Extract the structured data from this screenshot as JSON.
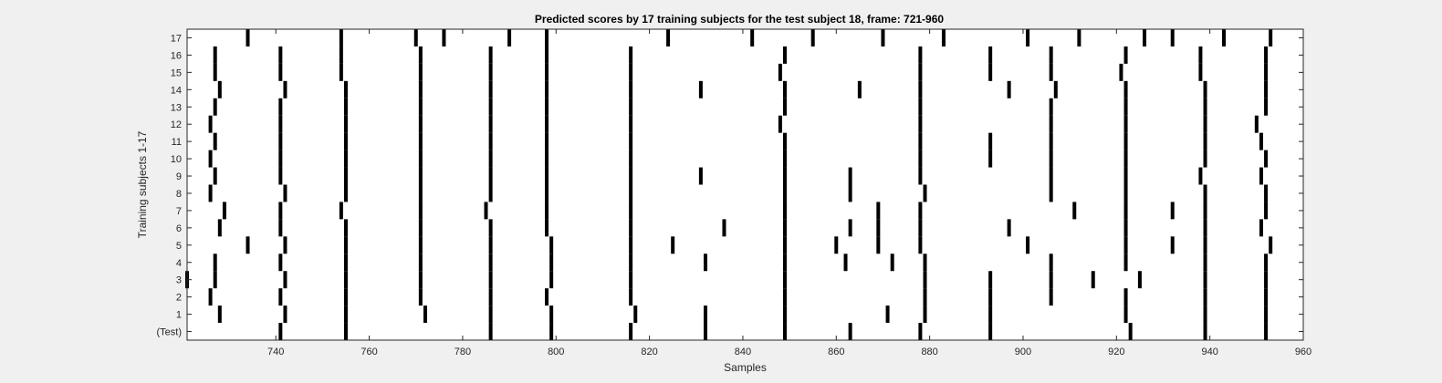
{
  "chart_data": {
    "type": "heatmap",
    "title": "Predicted scores by 17 training subjects for the test subject 18, frame: 721-960",
    "xlabel": "Samples",
    "ylabel": "Training subjects 1-17",
    "xlim": [
      721,
      960
    ],
    "xticks": [
      740,
      760,
      780,
      800,
      820,
      840,
      860,
      880,
      900,
      920,
      940,
      960
    ],
    "yticklabels": [
      "(Test)",
      "1",
      "2",
      "3",
      "4",
      "5",
      "6",
      "7",
      "8",
      "9",
      "10",
      "11",
      "12",
      "13",
      "14",
      "15",
      "16",
      "17"
    ],
    "grid": false,
    "colors": {
      "event": "#000000",
      "background": "#ffffff",
      "figure": "#f0f0f0"
    },
    "series": [
      {
        "row": "(Test)",
        "events": [
          741,
          755,
          786,
          799,
          816,
          832,
          849,
          863,
          878,
          893,
          923,
          939,
          952
        ]
      },
      {
        "row": "1",
        "events": [
          728,
          742,
          755,
          772,
          786,
          799,
          817,
          832,
          849,
          871,
          879,
          893,
          922,
          939,
          952
        ]
      },
      {
        "row": "2",
        "events": [
          726,
          741,
          755,
          771,
          786,
          798,
          816,
          849,
          879,
          893,
          906,
          922,
          939,
          952
        ]
      },
      {
        "row": "3",
        "events": [
          721,
          727,
          742,
          755,
          771,
          786,
          799,
          816,
          849,
          879,
          893,
          906,
          915,
          925,
          939,
          952
        ]
      },
      {
        "row": "4",
        "events": [
          727,
          741,
          755,
          771,
          786,
          799,
          816,
          832,
          849,
          862,
          872,
          879,
          906,
          922,
          939,
          952
        ]
      },
      {
        "row": "5",
        "events": [
          734,
          742,
          755,
          771,
          786,
          799,
          816,
          825,
          849,
          860,
          869,
          878,
          901,
          922,
          932,
          939,
          953
        ]
      },
      {
        "row": "6",
        "events": [
          728,
          741,
          755,
          771,
          786,
          798,
          816,
          836,
          849,
          863,
          869,
          878,
          897,
          922,
          939,
          951
        ]
      },
      {
        "row": "7",
        "events": [
          729,
          741,
          754,
          771,
          785,
          798,
          816,
          849,
          869,
          878,
          911,
          922,
          932,
          939,
          952
        ]
      },
      {
        "row": "8",
        "events": [
          726,
          742,
          755,
          771,
          786,
          798,
          816,
          849,
          863,
          879,
          906,
          922,
          939,
          952
        ]
      },
      {
        "row": "9",
        "events": [
          727,
          741,
          755,
          771,
          786,
          798,
          816,
          831,
          849,
          863,
          878,
          906,
          922,
          938,
          951
        ]
      },
      {
        "row": "10",
        "events": [
          726,
          741,
          755,
          771,
          786,
          798,
          816,
          849,
          878,
          893,
          906,
          922,
          939,
          952
        ]
      },
      {
        "row": "11",
        "events": [
          727,
          741,
          755,
          771,
          786,
          798,
          816,
          849,
          878,
          893,
          906,
          922,
          939,
          951
        ]
      },
      {
        "row": "12",
        "events": [
          726,
          741,
          755,
          771,
          786,
          798,
          816,
          848,
          878,
          906,
          922,
          939,
          950
        ]
      },
      {
        "row": "13",
        "events": [
          727,
          741,
          755,
          771,
          786,
          798,
          816,
          849,
          878,
          906,
          922,
          939,
          952
        ]
      },
      {
        "row": "14",
        "events": [
          728,
          742,
          755,
          771,
          786,
          798,
          816,
          831,
          849,
          865,
          878,
          897,
          907,
          922,
          939,
          952
        ]
      },
      {
        "row": "15",
        "events": [
          727,
          741,
          754,
          771,
          786,
          798,
          816,
          848,
          878,
          893,
          906,
          921,
          938,
          952
        ]
      },
      {
        "row": "16",
        "events": [
          727,
          741,
          754,
          771,
          786,
          798,
          816,
          849,
          878,
          893,
          906,
          922,
          938,
          952
        ]
      },
      {
        "row": "17",
        "events": [
          734,
          754,
          770,
          776,
          790,
          798,
          824,
          842,
          855,
          870,
          883,
          901,
          912,
          926,
          932,
          943,
          953
        ]
      }
    ]
  }
}
